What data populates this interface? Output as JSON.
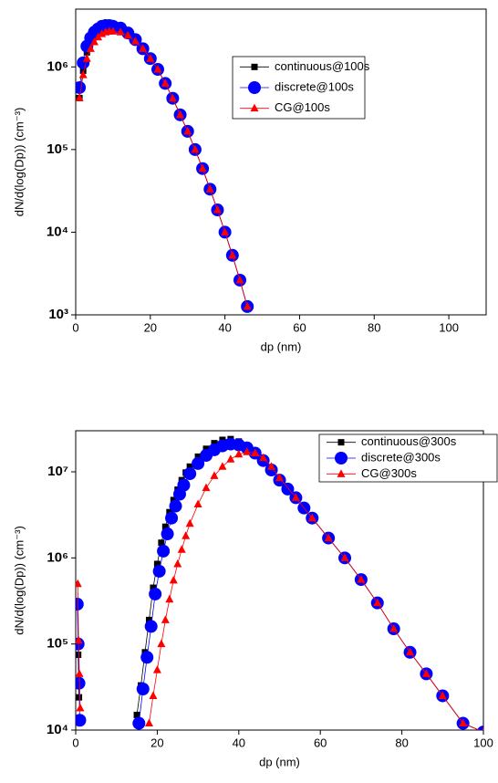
{
  "chart_data": [
    {
      "type": "line",
      "xlabel": "dp (nm)",
      "ylabel": "dN/d(log(Dp)) (cm⁻³)",
      "ylog": true,
      "legend": "upper right",
      "xlim": [
        0,
        110
      ],
      "xticks": [
        0,
        20,
        40,
        60,
        80,
        100
      ],
      "ylim": [
        1000,
        5000000
      ],
      "yticks": [
        {
          "value": 1000,
          "label": "10³"
        },
        {
          "value": 10000,
          "label": "10⁴"
        },
        {
          "value": 100000,
          "label": "10⁵"
        },
        {
          "value": 1000000,
          "label": "10⁶"
        }
      ],
      "x": [
        1,
        2,
        3,
        4,
        5,
        6,
        7,
        8,
        9,
        10,
        12,
        14,
        16,
        18,
        20,
        22,
        24,
        26,
        28,
        30,
        32,
        34,
        36,
        38,
        40,
        42,
        44,
        46
      ],
      "series": [
        {
          "name": "continuous@100s",
          "color": "#000000",
          "marker": "square",
          "values": [
            420000,
            900000,
            1500000,
            2000000,
            2450000,
            2750000,
            2950000,
            3050000,
            3160000,
            3100000,
            2950000,
            2570000,
            2140000,
            1660000,
            1260000,
            933000,
            631000,
            417000,
            263000,
            166000,
            100000,
            58900,
            33100,
            18600,
            10000,
            5250,
            2630,
            1260
          ]
        },
        {
          "name": "discrete@100s",
          "color": "#0000ff",
          "marker": "circle",
          "values": [
            562000,
            1120000,
            1780000,
            2240000,
            2630000,
            2880000,
            3090000,
            3160000,
            3160000,
            3100000,
            2950000,
            2570000,
            2140000,
            1660000,
            1260000,
            933000,
            631000,
            417000,
            263000,
            166000,
            100000,
            58900,
            33100,
            18600,
            10000,
            5250,
            2630,
            1260
          ]
        },
        {
          "name": "CG@100s",
          "color": "#ff0000",
          "marker": "triangle",
          "values": [
            420000,
            800000,
            1260000,
            1660000,
            2000000,
            2290000,
            2510000,
            2630000,
            2690000,
            2690000,
            2630000,
            2400000,
            2040000,
            1660000,
            1260000,
            933000,
            631000,
            417000,
            263000,
            166000,
            100000,
            58900,
            33100,
            18600,
            10000,
            5250,
            2630,
            1260
          ]
        }
      ]
    },
    {
      "type": "line",
      "xlabel": "dp (nm)",
      "ylabel": "dN/d(log(Dp)) (cm⁻³)",
      "ylog": true,
      "legend": "upper right",
      "xlim": [
        0,
        100
      ],
      "xticks": [
        0,
        20,
        40,
        60,
        80,
        100
      ],
      "ylim": [
        10000,
        30000000
      ],
      "yticks": [
        {
          "value": 10000,
          "label": "10⁴"
        },
        {
          "value": 100000,
          "label": "10⁵"
        },
        {
          "value": 1000000,
          "label": "10⁶"
        },
        {
          "value": 10000000,
          "label": "10⁷"
        }
      ],
      "series": [
        {
          "name": "continuous@300s",
          "color": "#000000",
          "marker": "square",
          "x": [
            0.6,
            0.8,
            8,
            15,
            16,
            17,
            18,
            19,
            20,
            21,
            22,
            23,
            24,
            25,
            26,
            27,
            28,
            30,
            32,
            34,
            36,
            38,
            40,
            42,
            44,
            46,
            48,
            50,
            54,
            58,
            62,
            66,
            70,
            74,
            78,
            82,
            86,
            90,
            95,
            100
          ],
          "values": [
            75000,
            24000,
            null,
            15000,
            33000,
            80000,
            190000,
            450000,
            850000,
            1500000,
            2300000,
            3400000,
            4700000,
            6200000,
            8000000,
            9800000,
            11500000,
            15000000,
            18500000,
            21500000,
            23500000,
            24000000,
            22500000,
            19500000,
            16500000,
            13500000,
            10500000,
            8000000,
            5000000,
            2900000,
            1700000,
            1000000,
            560000,
            300000,
            150000,
            80000,
            45000,
            25000,
            12000,
            9500
          ]
        },
        {
          "name": "discrete@300s",
          "color": "#0000ff",
          "marker": "circle",
          "x": [
            0.4,
            0.6,
            0.8,
            1.0,
            8,
            15.5,
            16.5,
            17.5,
            18.5,
            19.5,
            20.5,
            21.5,
            22.5,
            23.5,
            24.5,
            25.5,
            26.5,
            28,
            30,
            32,
            34,
            36,
            38,
            40,
            42,
            44,
            46,
            48,
            50,
            52,
            54,
            56,
            58,
            62,
            66,
            70,
            74,
            78,
            82,
            86,
            90,
            95,
            100
          ],
          "values": [
            290000,
            100000,
            35000,
            13000,
            null,
            12000,
            30000,
            70000,
            160000,
            380000,
            700000,
            1200000,
            1900000,
            2900000,
            4000000,
            5500000,
            7000000,
            9500000,
            12500000,
            15500000,
            18000000,
            20000000,
            21000000,
            20500000,
            19000000,
            16500000,
            13500000,
            10500000,
            8000000,
            6300000,
            5000000,
            3800000,
            2900000,
            1700000,
            1000000,
            560000,
            300000,
            150000,
            80000,
            45000,
            25000,
            12000,
            9500
          ]
        },
        {
          "name": "CG@300s",
          "color": "#ff0000",
          "marker": "triangle",
          "x": [
            0.5,
            0.7,
            0.9,
            1.1,
            8,
            18,
            19,
            20,
            21,
            22,
            23,
            24,
            25,
            26,
            27,
            28,
            30,
            32,
            34,
            36,
            38,
            40,
            42,
            44,
            46,
            48,
            50,
            54,
            58,
            62,
            66,
            70,
            74,
            78,
            82,
            86,
            90,
            95,
            100
          ],
          "values": [
            500000,
            110000,
            45000,
            18000,
            null,
            12000,
            25000,
            50000,
            100000,
            190000,
            330000,
            550000,
            850000,
            1250000,
            1800000,
            2500000,
            4200000,
            6500000,
            9000000,
            11500000,
            14000000,
            16000000,
            17000000,
            16500000,
            14500000,
            11500000,
            8500000,
            5000000,
            2900000,
            1700000,
            1000000,
            560000,
            300000,
            150000,
            80000,
            45000,
            25000,
            12000,
            9500
          ]
        }
      ]
    }
  ]
}
